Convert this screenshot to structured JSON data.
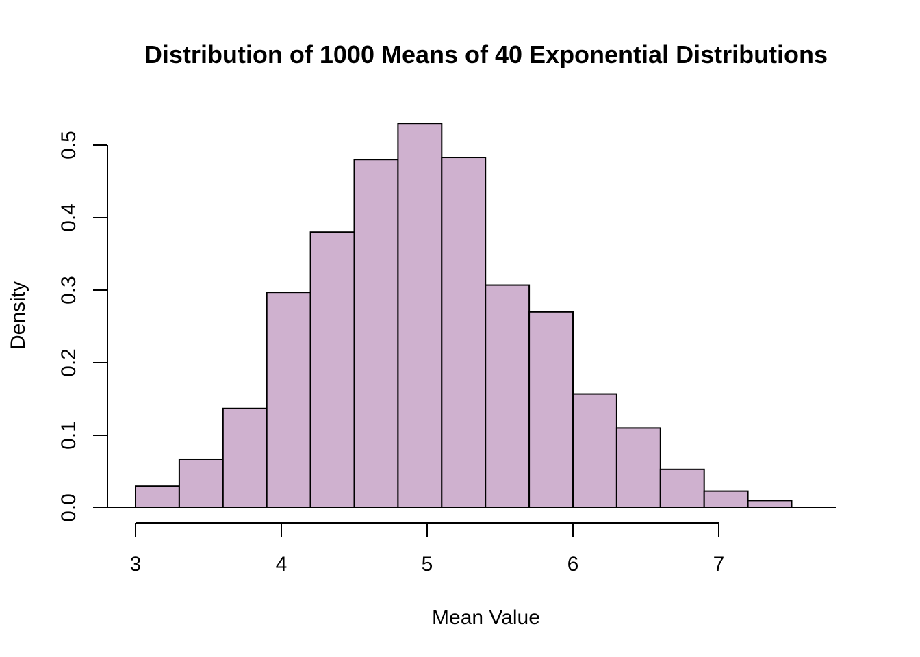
{
  "chart_data": {
    "type": "bar",
    "subtype": "histogram",
    "title": "Distribution of 1000 Means of 40 Exponential Distributions",
    "xlabel": "Mean Value",
    "ylabel": "Density",
    "bar_color": "#cfb1cf",
    "edge_color": "#000000",
    "grid": false,
    "legend": "none",
    "xlim": [
      2.8,
      7.8
    ],
    "ylim": [
      0,
      0.53
    ],
    "x_axis": {
      "range": [
        3,
        7
      ],
      "ticks": [
        3,
        4,
        5,
        6,
        7
      ],
      "tick_labels": [
        "3",
        "4",
        "5",
        "6",
        "7"
      ]
    },
    "y_axis": {
      "range": [
        0,
        0.5
      ],
      "ticks": [
        0,
        0.1,
        0.2,
        0.3,
        0.4,
        0.5
      ],
      "tick_labels": [
        "0.0",
        "0.1",
        "0.2",
        "0.3",
        "0.4",
        "0.5"
      ]
    },
    "bins": [
      {
        "x0": 3.0,
        "x1": 3.3,
        "density": 0.03
      },
      {
        "x0": 3.3,
        "x1": 3.6,
        "density": 0.067
      },
      {
        "x0": 3.6,
        "x1": 3.9,
        "density": 0.137
      },
      {
        "x0": 3.9,
        "x1": 4.2,
        "density": 0.297
      },
      {
        "x0": 4.2,
        "x1": 4.5,
        "density": 0.38
      },
      {
        "x0": 4.5,
        "x1": 4.8,
        "density": 0.48
      },
      {
        "x0": 4.8,
        "x1": 5.1,
        "density": 0.53
      },
      {
        "x0": 5.1,
        "x1": 5.4,
        "density": 0.483
      },
      {
        "x0": 5.4,
        "x1": 5.7,
        "density": 0.307
      },
      {
        "x0": 5.7,
        "x1": 6.0,
        "density": 0.27
      },
      {
        "x0": 6.0,
        "x1": 6.3,
        "density": 0.157
      },
      {
        "x0": 6.3,
        "x1": 6.6,
        "density": 0.11
      },
      {
        "x0": 6.6,
        "x1": 6.9,
        "density": 0.053
      },
      {
        "x0": 6.9,
        "x1": 7.2,
        "density": 0.023
      },
      {
        "x0": 7.2,
        "x1": 7.5,
        "density": 0.01
      }
    ]
  }
}
